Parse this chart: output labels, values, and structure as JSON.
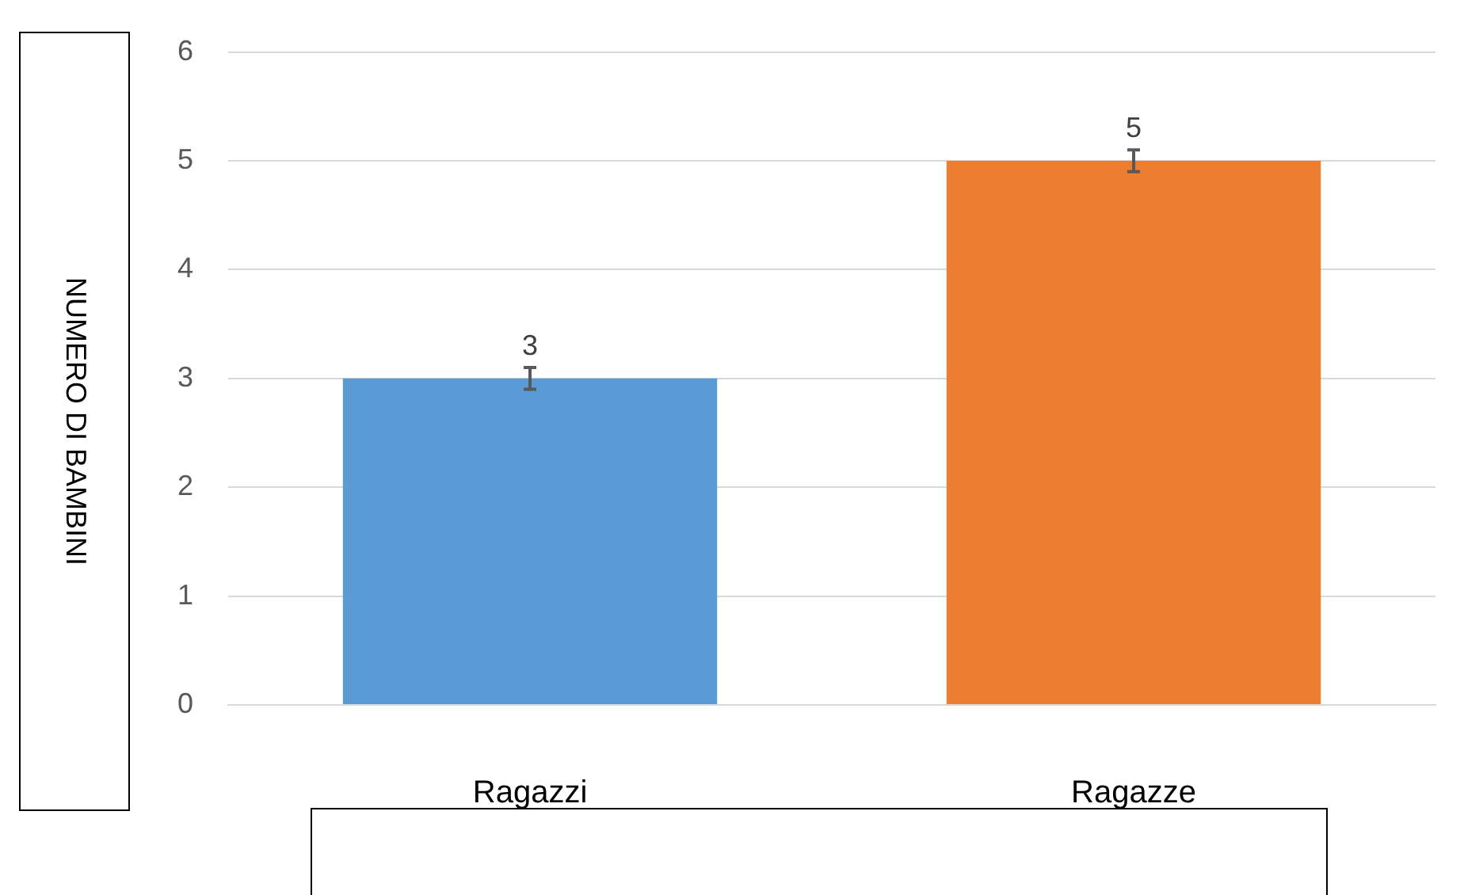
{
  "chart_data": {
    "type": "bar",
    "ylabel": "NUMERO DI BAMBINI",
    "categories": [
      "Ragazzi",
      "Ragazze"
    ],
    "values": [
      3,
      5
    ],
    "colors": [
      "#5b9bd5",
      "#ed7d31"
    ],
    "errors": [
      0.1,
      0.1
    ],
    "ylim": [
      0,
      6
    ],
    "yticks": [
      0,
      1,
      2,
      3,
      4,
      5,
      6
    ],
    "grid": "y",
    "data_labels": true,
    "legend": false
  }
}
